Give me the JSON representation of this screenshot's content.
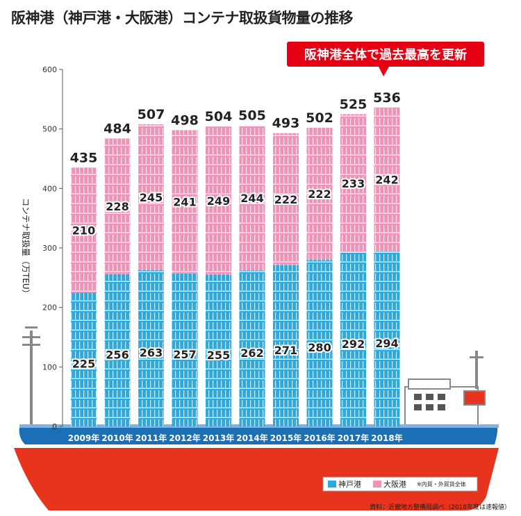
{
  "title": "阪神港（神戸港・大阪港）コンテナ取扱貨物量の推移",
  "callout": "阪神港全体で過去最高を更新",
  "source": "資料：近畿地方整備局調べ（2018年度は速報値）",
  "legend_note": "※内貿・外貿貨全体",
  "colors": {
    "kobe": "#29abe2",
    "osaka": "#f290b8",
    "highlight": "#e60012",
    "hull": "#e8341c",
    "deck": "#1a6fb5"
  },
  "chart_data": {
    "type": "bar",
    "stacked": true,
    "categories": [
      "2009年",
      "2010年",
      "2011年",
      "2012年",
      "2013年",
      "2014年",
      "2015年",
      "2016年",
      "2017年",
      "2018年"
    ],
    "series": [
      {
        "name": "神戸港",
        "values": [
          225,
          256,
          263,
          257,
          255,
          262,
          271,
          280,
          292,
          294
        ]
      },
      {
        "name": "大阪港",
        "values": [
          210,
          228,
          245,
          241,
          249,
          244,
          222,
          222,
          233,
          242
        ]
      }
    ],
    "totals": [
      435,
      484,
      507,
      498,
      504,
      505,
      493,
      502,
      525,
      536
    ],
    "ylabel": "コンテナ取扱量（万TEU）",
    "ylim": [
      0,
      600
    ],
    "yticks": [
      0,
      100,
      200,
      300,
      400,
      500,
      600
    ],
    "legend": "bottom-right"
  }
}
